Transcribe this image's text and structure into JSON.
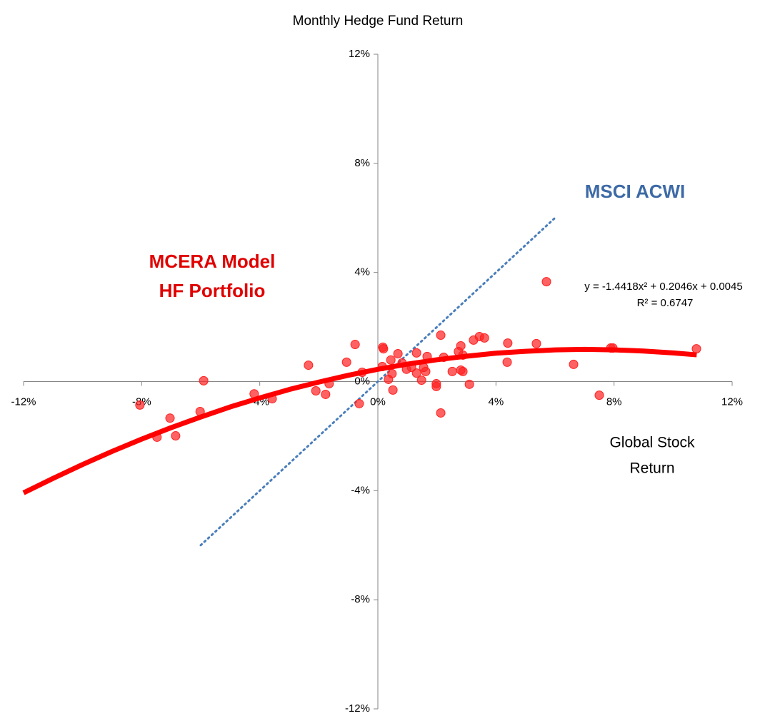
{
  "chart_data": {
    "type": "scatter",
    "title": "Monthly Hedge Fund Return",
    "xlabel": [
      "Global Stock",
      "Return"
    ],
    "xlim": [
      -12,
      12
    ],
    "ylim": [
      -12,
      12
    ],
    "xticks": [
      {
        "value": -12,
        "label": "-12%"
      },
      {
        "value": -8,
        "label": "-8%"
      },
      {
        "value": -4,
        "label": "-4%"
      },
      {
        "value": 0,
        "label": "0%"
      },
      {
        "value": 4,
        "label": "4%"
      },
      {
        "value": 8,
        "label": "8%"
      },
      {
        "value": 12,
        "label": "12%"
      }
    ],
    "yticks": [
      {
        "value": -12,
        "label": "-12%"
      },
      {
        "value": -8,
        "label": "-8%"
      },
      {
        "value": -4,
        "label": "-4%"
      },
      {
        "value": 0,
        "label": "0%"
      },
      {
        "value": 4,
        "label": "4%"
      },
      {
        "value": 8,
        "label": "8%"
      },
      {
        "value": 12,
        "label": "12%"
      }
    ],
    "series": [
      {
        "kind": "points",
        "color": "#ff2020",
        "x": [
          -8.06,
          -7.04,
          -7.48,
          -6.85,
          -6.02,
          -5.9,
          -4.19,
          -3.58,
          -2.35,
          -2.1,
          -1.77,
          -1.65,
          -1.06,
          -0.77,
          -0.63,
          -0.53,
          0.15,
          0.17,
          0.19,
          0.36,
          0.44,
          0.48,
          0.51,
          0.68,
          0.82,
          0.97,
          1.14,
          1.31,
          1.31,
          1.48,
          1.55,
          1.62,
          1.67,
          1.98,
          1.98,
          2.13,
          2.13,
          2.23,
          2.52,
          2.73,
          2.81,
          2.81,
          2.88,
          2.88,
          3.1,
          3.24,
          3.44,
          3.61,
          4.4,
          4.38,
          5.37,
          5.71,
          6.63,
          7.5,
          7.89,
          7.96,
          10.79
        ],
        "values": [
          -0.86,
          -1.34,
          -2.04,
          -1.99,
          -1.1,
          0.03,
          -0.45,
          -0.63,
          0.6,
          -0.34,
          -0.47,
          -0.08,
          0.71,
          1.36,
          -0.81,
          0.34,
          0.55,
          1.26,
          1.2,
          0.08,
          0.79,
          0.29,
          -0.31,
          1.02,
          0.68,
          0.45,
          0.52,
          1.05,
          0.31,
          0.05,
          0.52,
          0.37,
          0.92,
          -0.08,
          -0.18,
          1.7,
          -1.15,
          0.89,
          0.37,
          1.1,
          1.31,
          0.42,
          0.37,
          0.97,
          -0.1,
          1.52,
          1.65,
          1.6,
          1.41,
          0.71,
          1.39,
          3.66,
          0.63,
          -0.5,
          1.23,
          1.23,
          1.2
        ]
      },
      {
        "kind": "trend",
        "color": "#ff0000",
        "x": [
          -12,
          -11,
          -10,
          -9,
          -8,
          -7,
          -6,
          -5,
          -4,
          -3,
          -2,
          -1,
          0,
          1,
          2,
          3,
          4,
          5,
          6,
          7,
          8,
          9,
          10,
          10.8
        ],
        "values": [
          -4.08,
          -3.55,
          -3.04,
          -2.56,
          -2.11,
          -1.69,
          -1.3,
          -0.93,
          -0.6,
          -0.29,
          -0.02,
          0.23,
          0.45,
          0.64,
          0.8,
          0.93,
          1.04,
          1.11,
          1.16,
          1.18,
          1.16,
          1.12,
          1.05,
          0.98
        ]
      },
      {
        "kind": "dotted",
        "name": "MSCI ACWI",
        "color": "#4a7ebb",
        "x": [
          -6,
          6
        ],
        "values": [
          -6,
          6
        ]
      }
    ],
    "annotations": {
      "portfolio": [
        "MCERA Model",
        "HF Portfolio"
      ],
      "equation": "y = -1.4418x² + 0.2046x + 0.0045",
      "r2": "R² = 0.6747"
    }
  }
}
